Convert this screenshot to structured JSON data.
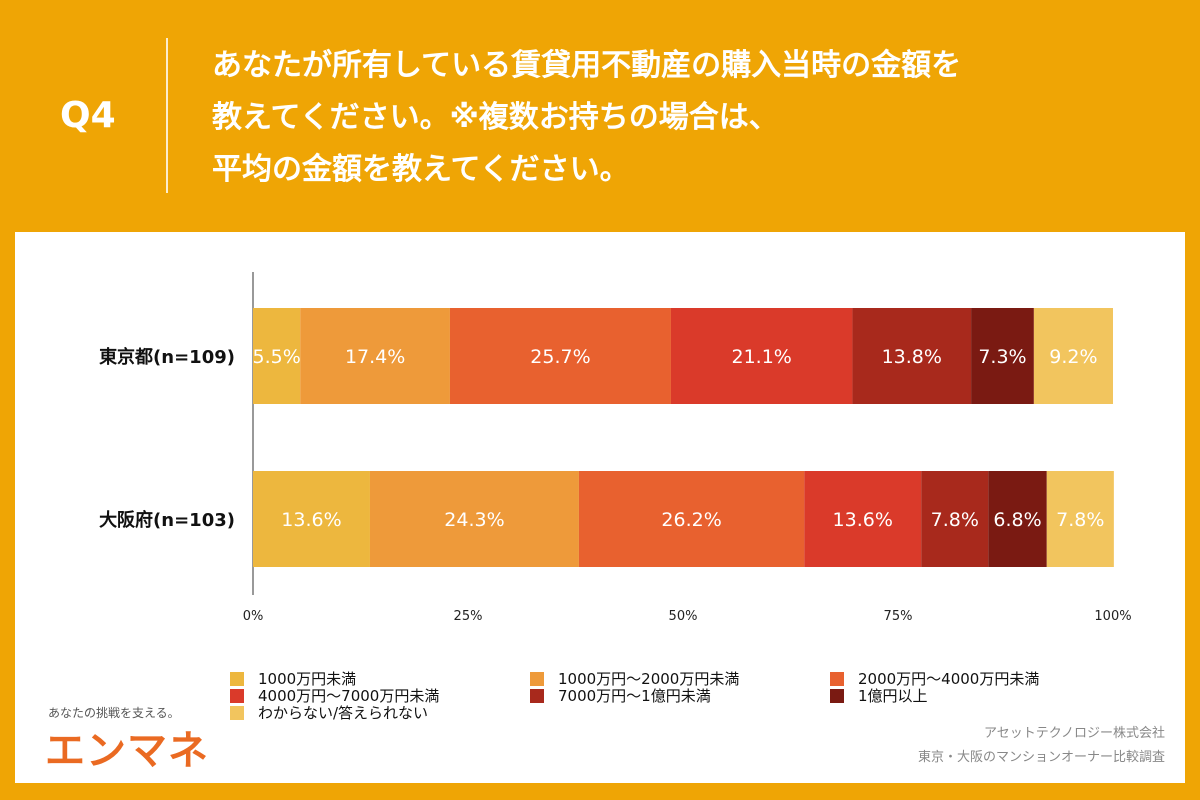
{
  "header": {
    "q": "Q4",
    "title_lines": [
      "あなたが所有している賃貸用不動産の購入当時の金額を",
      "教えてください。※複数お持ちの場合は、",
      "平均の金額を教えてください。"
    ]
  },
  "chart_data": {
    "type": "bar",
    "orientation": "horizontal",
    "stacked": true,
    "categories": [
      "東京都(n=109)",
      "大阪府(n=103)"
    ],
    "xlim": [
      0,
      100
    ],
    "xticks": [
      "0%",
      "25%",
      "50%",
      "75%",
      "100%"
    ],
    "series": [
      {
        "name": "1000万円未満",
        "color": "#EDB73E",
        "values": [
          5.5,
          13.6
        ]
      },
      {
        "name": "1000万円〜2000万円未満",
        "color": "#EE9A3A",
        "values": [
          17.4,
          24.3
        ]
      },
      {
        "name": "2000万円〜4000万円未満",
        "color": "#E8612F",
        "values": [
          25.7,
          26.2
        ]
      },
      {
        "name": "4000万円〜7000万円未満",
        "color": "#DA3A2A",
        "values": [
          21.1,
          13.6
        ]
      },
      {
        "name": "7000万円〜1億円未満",
        "color": "#A8291C",
        "values": [
          13.8,
          7.8
        ]
      },
      {
        "name": "1億円以上",
        "color": "#7A1A12",
        "values": [
          7.3,
          6.8
        ]
      },
      {
        "name": "わからない/答えられない",
        "color": "#F2C55E",
        "values": [
          9.2,
          7.8
        ]
      }
    ],
    "legend": "bottom"
  },
  "footer": {
    "company": "アセットテクノロジー株式会社",
    "survey": "東京・大阪のマンションオーナー比較調査",
    "logo_tagline": "あなたの挑戦を支える。",
    "logo": "エンマネ"
  }
}
